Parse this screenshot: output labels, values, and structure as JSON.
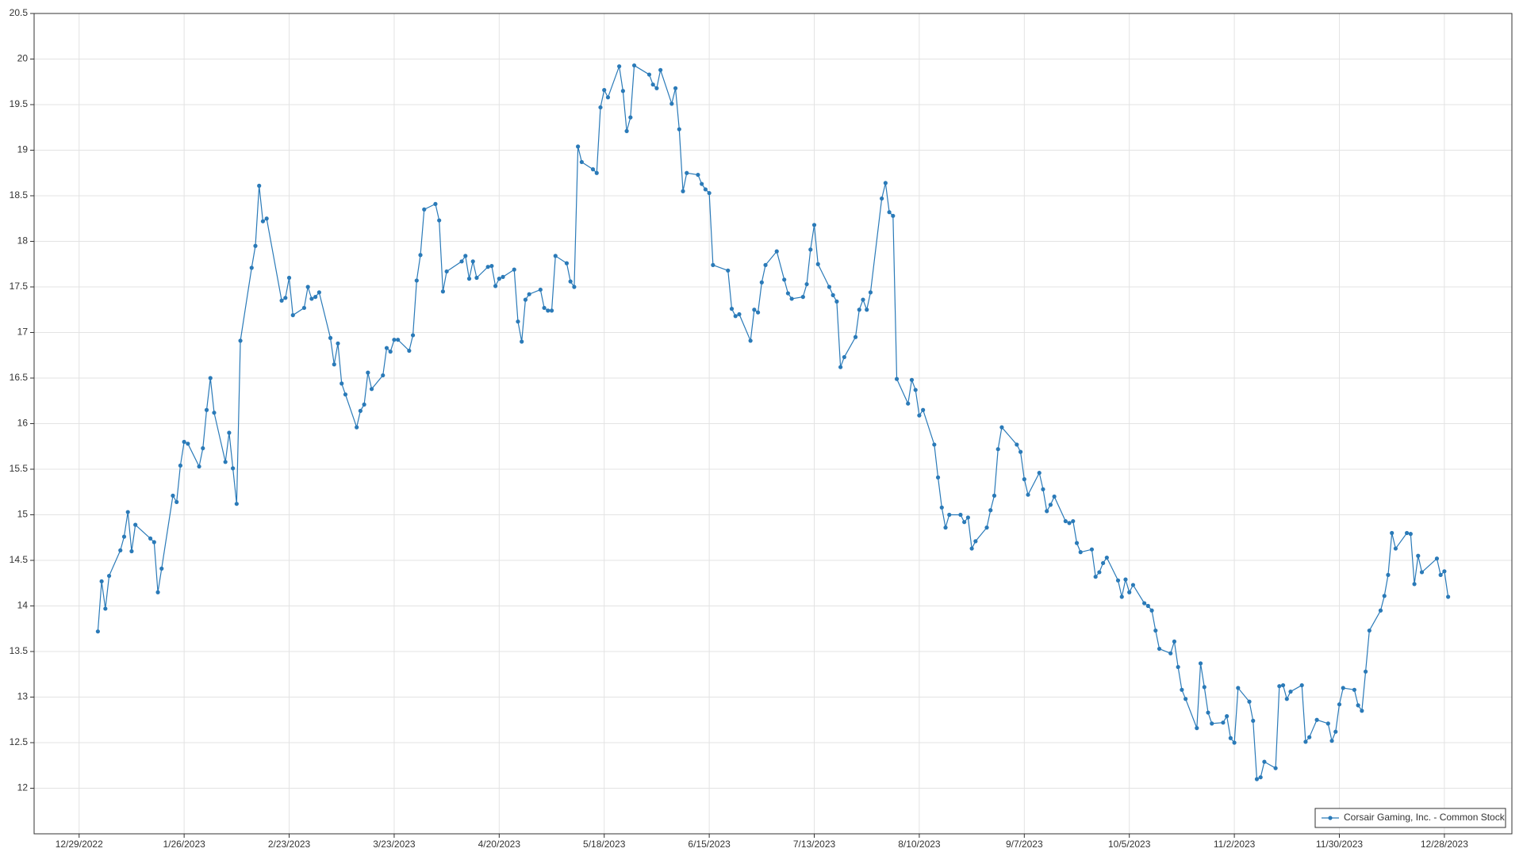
{
  "chart_data": {
    "type": "line",
    "x": [
      "1/3/2023",
      "1/4/2023",
      "1/5/2023",
      "1/6/2023",
      "1/9/2023",
      "1/10/2023",
      "1/11/2023",
      "1/12/2023",
      "1/13/2023",
      "1/17/2023",
      "1/18/2023",
      "1/19/2023",
      "1/20/2023",
      "1/23/2023",
      "1/24/2023",
      "1/25/2023",
      "1/26/2023",
      "1/27/2023",
      "1/30/2023",
      "1/31/2023",
      "2/1/2023",
      "2/2/2023",
      "2/3/2023",
      "2/6/2023",
      "2/7/2023",
      "2/8/2023",
      "2/9/2023",
      "2/10/2023",
      "2/13/2023",
      "2/14/2023",
      "2/15/2023",
      "2/16/2023",
      "2/17/2023",
      "2/21/2023",
      "2/22/2023",
      "2/23/2023",
      "2/24/2023",
      "2/27/2023",
      "2/28/2023",
      "3/1/2023",
      "3/2/2023",
      "3/3/2023",
      "3/6/2023",
      "3/7/2023",
      "3/8/2023",
      "3/9/2023",
      "3/10/2023",
      "3/13/2023",
      "3/14/2023",
      "3/15/2023",
      "3/16/2023",
      "3/17/2023",
      "3/20/2023",
      "3/21/2023",
      "3/22/2023",
      "3/23/2023",
      "3/24/2023",
      "3/27/2023",
      "3/28/2023",
      "3/29/2023",
      "3/30/2023",
      "3/31/2023",
      "4/3/2023",
      "4/4/2023",
      "4/5/2023",
      "4/6/2023",
      "4/10/2023",
      "4/11/2023",
      "4/12/2023",
      "4/13/2023",
      "4/14/2023",
      "4/17/2023",
      "4/18/2023",
      "4/19/2023",
      "4/20/2023",
      "4/21/2023",
      "4/24/2023",
      "4/25/2023",
      "4/26/2023",
      "4/27/2023",
      "4/28/2023",
      "5/1/2023",
      "5/2/2023",
      "5/3/2023",
      "5/4/2023",
      "5/5/2023",
      "5/8/2023",
      "5/9/2023",
      "5/10/2023",
      "5/11/2023",
      "5/12/2023",
      "5/15/2023",
      "5/16/2023",
      "5/17/2023",
      "5/18/2023",
      "5/19/2023",
      "5/22/2023",
      "5/23/2023",
      "5/24/2023",
      "5/25/2023",
      "5/26/2023",
      "5/30/2023",
      "5/31/2023",
      "6/1/2023",
      "6/2/2023",
      "6/5/2023",
      "6/6/2023",
      "6/7/2023",
      "6/8/2023",
      "6/9/2023",
      "6/12/2023",
      "6/13/2023",
      "6/14/2023",
      "6/15/2023",
      "6/16/2023",
      "6/20/2023",
      "6/21/2023",
      "6/22/2023",
      "6/23/2023",
      "6/26/2023",
      "6/27/2023",
      "6/28/2023",
      "6/29/2023",
      "6/30/2023",
      "7/3/2023",
      "7/5/2023",
      "7/6/2023",
      "7/7/2023",
      "7/10/2023",
      "7/11/2023",
      "7/12/2023",
      "7/13/2023",
      "7/14/2023",
      "7/17/2023",
      "7/18/2023",
      "7/19/2023",
      "7/20/2023",
      "7/21/2023",
      "7/24/2023",
      "7/25/2023",
      "7/26/2023",
      "7/27/2023",
      "7/28/2023",
      "7/31/2023",
      "8/1/2023",
      "8/2/2023",
      "8/3/2023",
      "8/4/2023",
      "8/7/2023",
      "8/8/2023",
      "8/9/2023",
      "8/10/2023",
      "8/11/2023",
      "8/14/2023",
      "8/15/2023",
      "8/16/2023",
      "8/17/2023",
      "8/18/2023",
      "8/21/2023",
      "8/22/2023",
      "8/23/2023",
      "8/24/2023",
      "8/25/2023",
      "8/28/2023",
      "8/29/2023",
      "8/30/2023",
      "8/31/2023",
      "9/1/2023",
      "9/5/2023",
      "9/6/2023",
      "9/7/2023",
      "9/8/2023",
      "9/11/2023",
      "9/12/2023",
      "9/13/2023",
      "9/14/2023",
      "9/15/2023",
      "9/18/2023",
      "9/19/2023",
      "9/20/2023",
      "9/21/2023",
      "9/22/2023",
      "9/25/2023",
      "9/26/2023",
      "9/27/2023",
      "9/28/2023",
      "9/29/2023",
      "10/2/2023",
      "10/3/2023",
      "10/4/2023",
      "10/5/2023",
      "10/6/2023",
      "10/9/2023",
      "10/10/2023",
      "10/11/2023",
      "10/12/2023",
      "10/13/2023",
      "10/16/2023",
      "10/17/2023",
      "10/18/2023",
      "10/19/2023",
      "10/20/2023",
      "10/23/2023",
      "10/24/2023",
      "10/25/2023",
      "10/26/2023",
      "10/27/2023",
      "10/30/2023",
      "10/31/2023",
      "11/1/2023",
      "11/2/2023",
      "11/3/2023",
      "11/6/2023",
      "11/7/2023",
      "11/8/2023",
      "11/9/2023",
      "11/10/2023",
      "11/13/2023",
      "11/14/2023",
      "11/15/2023",
      "11/16/2023",
      "11/17/2023",
      "11/20/2023",
      "11/21/2023",
      "11/22/2023",
      "11/24/2023",
      "11/27/2023",
      "11/28/2023",
      "11/29/2023",
      "11/30/2023",
      "12/1/2023",
      "12/4/2023",
      "12/5/2023",
      "12/6/2023",
      "12/7/2023",
      "12/8/2023",
      "12/11/2023",
      "12/12/2023",
      "12/13/2023",
      "12/14/2023",
      "12/15/2023",
      "12/18/2023",
      "12/19/2023",
      "12/20/2023",
      "12/21/2023",
      "12/22/2023",
      "12/26/2023",
      "12/27/2023",
      "12/28/2023",
      "12/29/2023"
    ],
    "series": [
      {
        "name": "Corsair Gaming, Inc. - Common Stock",
        "color": "#2a7ab8",
        "values": [
          13.72,
          14.27,
          13.97,
          14.33,
          14.61,
          14.76,
          15.03,
          14.6,
          14.89,
          14.74,
          14.7,
          14.15,
          14.41,
          15.21,
          15.14,
          15.54,
          15.8,
          15.78,
          15.53,
          15.73,
          16.15,
          16.5,
          16.12,
          15.58,
          15.9,
          15.51,
          15.12,
          16.91,
          17.71,
          17.95,
          18.61,
          18.22,
          18.25,
          17.35,
          17.38,
          17.6,
          17.19,
          17.27,
          17.5,
          17.37,
          17.39,
          17.44,
          16.94,
          16.65,
          16.88,
          16.44,
          16.32,
          15.96,
          16.14,
          16.21,
          16.56,
          16.38,
          16.53,
          16.83,
          16.79,
          16.92,
          16.92,
          16.8,
          16.97,
          17.57,
          17.85,
          18.35,
          18.41,
          18.23,
          17.45,
          17.67,
          17.78,
          17.84,
          17.59,
          17.78,
          17.6,
          17.72,
          17.73,
          17.51,
          17.59,
          17.61,
          17.69,
          17.12,
          16.9,
          17.36,
          17.42,
          17.47,
          17.27,
          17.24,
          17.24,
          17.84,
          17.76,
          17.56,
          17.5,
          19.04,
          18.87,
          18.79,
          18.75,
          19.47,
          19.66,
          19.58,
          19.92,
          19.65,
          19.21,
          19.36,
          19.93,
          19.83,
          19.72,
          19.68,
          19.88,
          19.51,
          19.68,
          19.23,
          18.55,
          18.75,
          18.73,
          18.63,
          18.57,
          18.53,
          17.74,
          17.68,
          17.26,
          17.18,
          17.2,
          16.91,
          17.25,
          17.22,
          17.55,
          17.74,
          17.89,
          17.58,
          17.43,
          17.37,
          17.39,
          17.53,
          17.91,
          18.18,
          17.75,
          17.5,
          17.41,
          17.34,
          16.62,
          16.73,
          16.95,
          17.25,
          17.36,
          17.25,
          17.44,
          18.47,
          18.64,
          18.32,
          18.28,
          16.49,
          16.22,
          16.48,
          16.37,
          16.09,
          16.15,
          15.77,
          15.41,
          15.08,
          14.86,
          15.0,
          15.0,
          14.92,
          14.97,
          14.63,
          14.71,
          14.86,
          15.05,
          15.21,
          15.72,
          15.96,
          15.77,
          15.69,
          15.39,
          15.22,
          15.46,
          15.28,
          15.04,
          15.11,
          15.2,
          14.93,
          14.91,
          14.93,
          14.69,
          14.59,
          14.62,
          14.32,
          14.37,
          14.47,
          14.53,
          14.28,
          14.1,
          14.29,
          14.15,
          14.23,
          14.03,
          14.0,
          13.95,
          13.73,
          13.53,
          13.48,
          13.61,
          13.33,
          13.08,
          12.98,
          12.66,
          13.37,
          13.11,
          12.83,
          12.71,
          12.72,
          12.79,
          12.55,
          12.5,
          13.1,
          12.95,
          12.74,
          12.1,
          12.12,
          12.29,
          12.22,
          13.12,
          13.13,
          12.98,
          13.06,
          13.13,
          12.51,
          12.56,
          12.75,
          12.71,
          12.52,
          12.62,
          12.92,
          13.1,
          13.08,
          12.91,
          12.85,
          13.28,
          13.73,
          13.95,
          14.11,
          14.34,
          14.8,
          14.63,
          14.8,
          14.79,
          14.24,
          14.55,
          14.37,
          14.52,
          14.34,
          14.38,
          14.1
        ]
      }
    ],
    "xlim": [
      "12/17/2022",
      "1/15/2024"
    ],
    "xticks": [
      "12/29/2022",
      "1/26/2023",
      "2/23/2023",
      "3/23/2023",
      "4/20/2023",
      "5/18/2023",
      "6/15/2023",
      "7/13/2023",
      "8/10/2023",
      "9/7/2023",
      "10/5/2023",
      "11/2/2023",
      "11/30/2023",
      "12/28/2023"
    ],
    "ylim": [
      11.5,
      20.5
    ],
    "yticks": [
      12,
      12.5,
      13,
      13.5,
      14,
      14.5,
      15,
      15.5,
      16,
      16.5,
      17,
      17.5,
      18,
      18.5,
      19,
      19.5,
      20,
      20.5
    ],
    "grid": true,
    "legend": "lower right",
    "markers": true
  }
}
